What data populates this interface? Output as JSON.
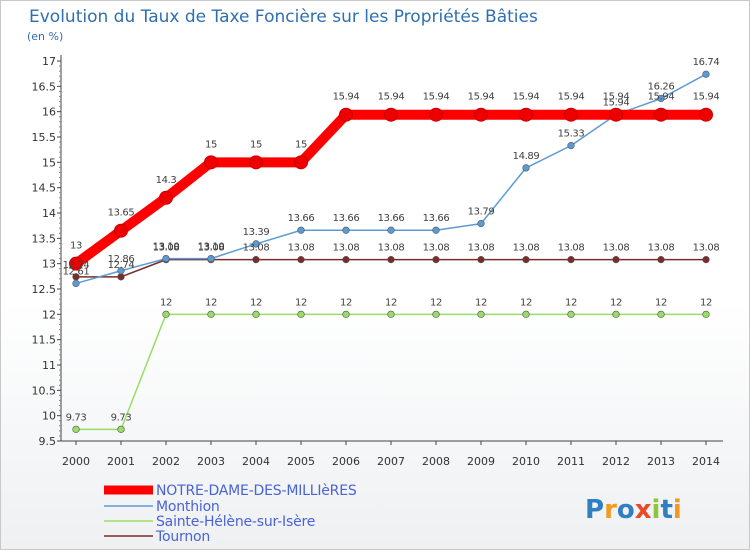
{
  "chart_data": {
    "type": "line",
    "title": "Evolution du Taux de Taxe Foncière sur les Propriétés Bâties",
    "subtitle": "(en %)",
    "xlabel": "",
    "ylabel": "",
    "ylim": [
      9.5,
      17
    ],
    "yticks": [
      "9.5",
      "10",
      "10.5",
      "11",
      "11.5",
      "12",
      "12.5",
      "13",
      "13.5",
      "14",
      "14.5",
      "15",
      "15.5",
      "16",
      "16.5",
      "17"
    ],
    "categories": [
      "2000",
      "2001",
      "2002",
      "2003",
      "2004",
      "2005",
      "2006",
      "2007",
      "2008",
      "2009",
      "2010",
      "2011",
      "2012",
      "2013",
      "2014"
    ],
    "grid": false,
    "legend_position": "bottom-left",
    "series": [
      {
        "name": "NOTRE-DAME-DES-MILLIèRES",
        "color": "#ff0000",
        "values": [
          13,
          13.65,
          14.3,
          15,
          15,
          15,
          15.94,
          15.94,
          15.94,
          15.94,
          15.94,
          15.94,
          15.94,
          15.94,
          15.94
        ],
        "labels": [
          "13",
          "13.65",
          "14.3",
          "15",
          "15",
          "15",
          "15.94",
          "15.94",
          "15.94",
          "15.94",
          "15.94",
          "15.94",
          "15.94",
          "15.94",
          "15.94"
        ]
      },
      {
        "name": "Monthion",
        "color": "#5b9bd5",
        "values": [
          12.61,
          12.86,
          13.1,
          13.1,
          13.39,
          13.66,
          13.66,
          13.66,
          13.66,
          13.79,
          14.89,
          15.33,
          15.94,
          16.26,
          16.74
        ],
        "labels": [
          "12.61",
          "12.86",
          "13.10",
          "13.10",
          "13.39",
          "13.66",
          "13.66",
          "13.66",
          "13.66",
          "13.79",
          "14.89",
          "15.33",
          "15.94",
          "16.26",
          "16.74"
        ]
      },
      {
        "name": "Sainte-Hélène-sur-Isère",
        "color": "#99dd66",
        "values": [
          9.73,
          9.73,
          12,
          12,
          12,
          12,
          12,
          12,
          12,
          12,
          12,
          12,
          12,
          12,
          12
        ],
        "labels": [
          "9.73",
          "9.73",
          "12",
          "12",
          "12",
          "12",
          "12",
          "12",
          "12",
          "12",
          "12",
          "12",
          "12",
          "12",
          "12"
        ]
      },
      {
        "name": "Tournon",
        "color": "#7a2b2b",
        "values": [
          12.74,
          12.74,
          13.08,
          13.08,
          13.08,
          13.08,
          13.08,
          13.08,
          13.08,
          13.08,
          13.08,
          13.08,
          13.08,
          13.08,
          13.08
        ],
        "labels": [
          "12.74",
          "12.74",
          "13.08",
          "13.08",
          "13.08",
          "13.08",
          "13.08",
          "13.08",
          "13.08",
          "13.08",
          "13.08",
          "13.08",
          "13.08",
          "13.08",
          "13.08"
        ]
      }
    ]
  },
  "branding": {
    "logo_letters": [
      "P",
      "r",
      "o",
      "x",
      "i",
      "t",
      "i"
    ],
    "logo_colors": [
      "#2f7fc1",
      "#f29a1f",
      "#2f7fc1",
      "#e84a2a",
      "#8cc63f",
      "#2f7fc1",
      "#f29a1f"
    ]
  }
}
